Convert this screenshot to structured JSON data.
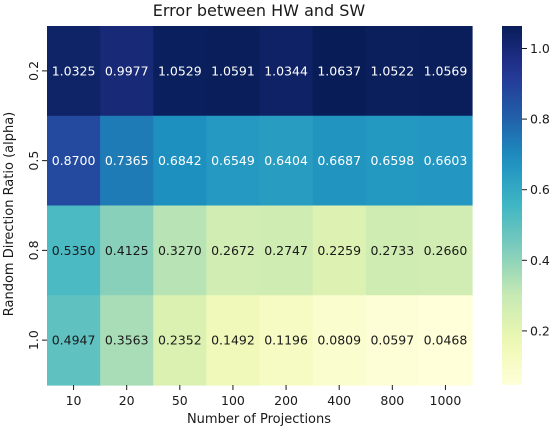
{
  "chart_data": {
    "type": "heatmap",
    "title": "Error between HW and SW",
    "xlabel": "Number of Projections",
    "ylabel": "Random Direction Ratio (alpha)",
    "x_categories": [
      "10",
      "20",
      "50",
      "100",
      "200",
      "400",
      "800",
      "1000"
    ],
    "y_categories": [
      "0.2",
      "0.5",
      "0.8",
      "1.0"
    ],
    "values": [
      [
        1.0325,
        0.9977,
        1.0529,
        1.0591,
        1.0344,
        1.0637,
        1.0522,
        1.0569
      ],
      [
        0.87,
        0.7365,
        0.6842,
        0.6549,
        0.6404,
        0.6687,
        0.6598,
        0.6603
      ],
      [
        0.535,
        0.4125,
        0.327,
        0.2672,
        0.2747,
        0.2259,
        0.2733,
        0.266
      ],
      [
        0.4947,
        0.3563,
        0.2352,
        0.1492,
        0.1196,
        0.0809,
        0.0597,
        0.0468
      ]
    ],
    "value_labels": [
      [
        "1.0325",
        "0.9977",
        "1.0529",
        "1.0591",
        "1.0344",
        "1.0637",
        "1.0522",
        "1.0569"
      ],
      [
        "0.8700",
        "0.7365",
        "0.6842",
        "0.6549",
        "0.6404",
        "0.6687",
        "0.6598",
        "0.6603"
      ],
      [
        "0.5350",
        "0.4125",
        "0.3270",
        "0.2672",
        "0.2747",
        "0.2259",
        "0.2733",
        "0.2660"
      ],
      [
        "0.4947",
        "0.3563",
        "0.2352",
        "0.1492",
        "0.1196",
        "0.0809",
        "0.0597",
        "0.0468"
      ]
    ],
    "colormap": "YlGnBu",
    "vmin": 0.0468,
    "vmax": 1.0637,
    "colorbar_ticks": [
      "0.2",
      "0.4",
      "0.6",
      "0.8",
      "1.0"
    ],
    "colorbar_tick_values": [
      0.2,
      0.4,
      0.6,
      0.8,
      1.0
    ],
    "grid": false,
    "legend": "colorbar-right"
  }
}
